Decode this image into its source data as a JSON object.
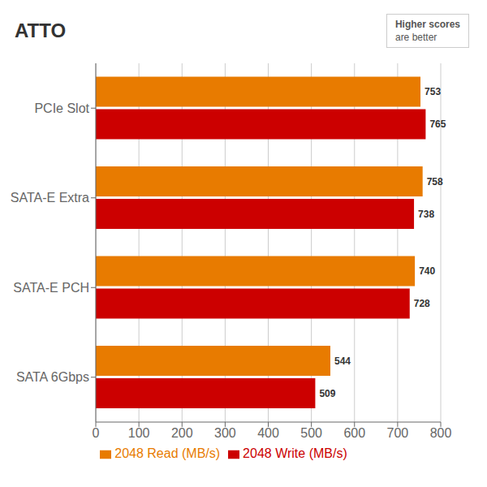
{
  "chart_data": {
    "type": "bar",
    "orientation": "horizontal",
    "title": "ATTO",
    "annotations": [
      "Higher scores",
      "are better"
    ],
    "categories": [
      "PCIe Slot",
      "SATA-E Extra",
      "SATA-E PCH",
      "SATA 6Gbps"
    ],
    "series": [
      {
        "name": "2048 Read (MB/s)",
        "color": "#E87B00",
        "values": [
          753,
          758,
          740,
          544
        ]
      },
      {
        "name": "2048 Write (MB/s)",
        "color": "#CC0000",
        "values": [
          765,
          738,
          728,
          509
        ]
      }
    ],
    "xlim": [
      0,
      800
    ],
    "xticks": [
      0,
      100,
      200,
      300,
      400,
      500,
      600,
      700,
      800
    ],
    "grid": true,
    "legend": "bottom",
    "data_labels": true
  }
}
